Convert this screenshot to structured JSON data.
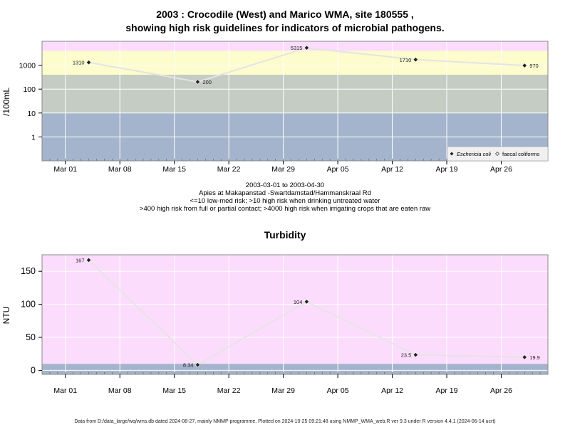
{
  "header": {
    "title_line1": "2003 : Crocodile (West) and Marico WMA, site 180555 ,",
    "title_line2": "showing high risk guidelines for indicators of microbial pathogens."
  },
  "middle_text": {
    "date_range": "2003-03-01 to 2003-04-30",
    "site": "Apies at Makapanstad -Swartdamstad/Hammanskraal Rd",
    "guideline1": "<=10 low-med risk; >10 high risk when drinking untreated water",
    "guideline2": ">400 high risk from full or partial contact; >4000 high risk when irrigating crops that are eaten raw"
  },
  "footer": "Data from D:/data_large/wq/wms.db dated 2024-08-27, mainly NMMP programme. Plotted on 2024-10-25 09:21:48 using NMMP_WMA_web.R ver 9.3 under R version 4.4.1 (2024-06-14 ucrt)",
  "chart_data": [
    {
      "type": "scatter",
      "title": "",
      "ylabel": "/100mL",
      "y_scale": "log10",
      "ylim": [
        0.1,
        10000
      ],
      "y_ticks": [
        1,
        10,
        100,
        1000
      ],
      "y_tick_labels": [
        "1",
        "10",
        "100",
        "1000"
      ],
      "x_range": [
        "2003-02-26",
        "2003-05-02"
      ],
      "x_ticks": [
        "2003-03-01",
        "2003-03-08",
        "2003-03-15",
        "2003-03-22",
        "2003-03-29",
        "2003-04-05",
        "2003-04-12",
        "2003-04-19",
        "2003-04-26"
      ],
      "x_tick_labels": [
        "Mar 01",
        "Mar 08",
        "Mar 15",
        "Mar 22",
        "Mar 29",
        "Apr 05",
        "Apr 12",
        "Apr 19",
        "Apr 26"
      ],
      "grid": true,
      "bands": [
        {
          "from": 0.1,
          "to": 10,
          "color": "#a4b4cc"
        },
        {
          "from": 10,
          "to": 400,
          "color": "#c4ccc4"
        },
        {
          "from": 400,
          "to": 4000,
          "color": "#fcfccc"
        },
        {
          "from": 4000,
          "to": 10000,
          "color": "#fcdcfc"
        }
      ],
      "series": [
        {
          "name": "Eschericia coli",
          "marker": "filled-diamond",
          "x": [
            "2003-03-04",
            "2003-03-18",
            "2003-04-01",
            "2003-04-15",
            "2003-04-29"
          ],
          "y": [
            1310,
            200,
            5315,
            1710,
            970
          ],
          "labels": [
            "1310",
            "200",
            "5315",
            "1710",
            "970"
          ],
          "label_side": [
            "left",
            "right",
            "left",
            "left",
            "right"
          ]
        },
        {
          "name": "faecal coliforms",
          "marker": "open-diamond",
          "x": [],
          "y": []
        }
      ],
      "legend": "bottom-right",
      "line_color": "#e4e4e4"
    },
    {
      "type": "scatter",
      "title": "Turbidity",
      "ylabel": "NTU",
      "y_scale": "linear",
      "ylim": [
        -6,
        175
      ],
      "y_ticks": [
        0,
        50,
        100,
        150
      ],
      "y_tick_labels": [
        "0",
        "50",
        "100",
        "150"
      ],
      "x_range": [
        "2003-02-26",
        "2003-05-02"
      ],
      "x_ticks": [
        "2003-03-01",
        "2003-03-08",
        "2003-03-15",
        "2003-03-22",
        "2003-03-29",
        "2003-04-05",
        "2003-04-12",
        "2003-04-19",
        "2003-04-26"
      ],
      "x_tick_labels": [
        "Mar 01",
        "Mar 08",
        "Mar 15",
        "Mar 22",
        "Mar 29",
        "Apr 05",
        "Apr 12",
        "Apr 19",
        "Apr 26"
      ],
      "grid": true,
      "bands": [
        {
          "from": -6,
          "to": 10,
          "color": "#a4b4cc"
        },
        {
          "from": 10,
          "to": 175,
          "color": "#fcdcfc"
        }
      ],
      "series": [
        {
          "name": "",
          "marker": "filled-diamond",
          "x": [
            "2003-03-04",
            "2003-03-18",
            "2003-04-01",
            "2003-04-15",
            "2003-04-29"
          ],
          "y": [
            167,
            8.34,
            104,
            23.5,
            19.9
          ],
          "labels": [
            "167",
            "8.34",
            "104",
            "23.5",
            "19.9"
          ],
          "label_side": [
            "left",
            "left",
            "left",
            "left",
            "right"
          ]
        }
      ],
      "legend": "none",
      "line_color": "#e4e4e4"
    }
  ]
}
